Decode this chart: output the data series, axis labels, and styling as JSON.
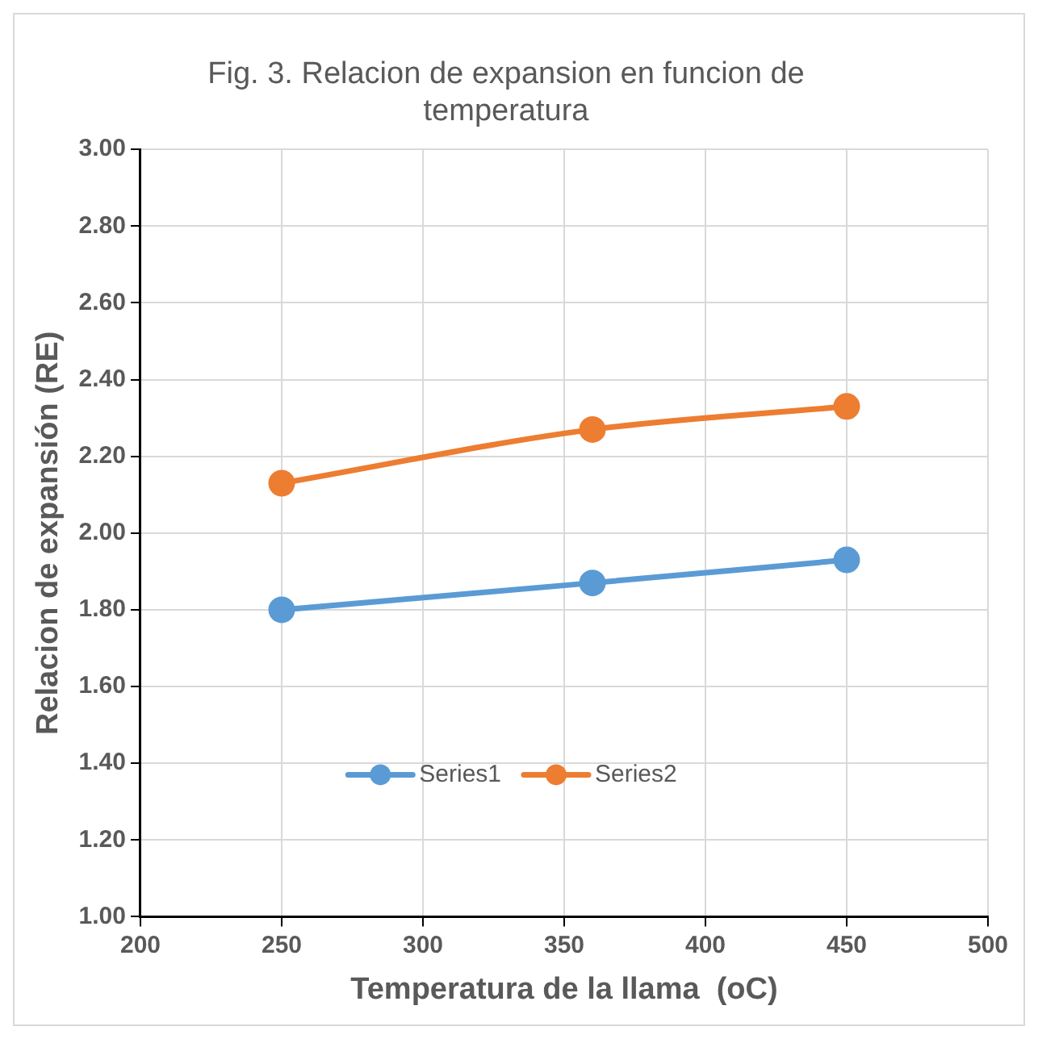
{
  "chart_data": {
    "type": "line",
    "title": "Fig. 3. Relacion de expansion en funcion de temperatura",
    "xlabel": "Temperatura de la llama  (oC)",
    "ylabel": "Relacion de expansión (RE)",
    "x": [
      250,
      360,
      450
    ],
    "series": [
      {
        "name": "Series1",
        "color": "#5b9bd5",
        "values": [
          1.8,
          1.87,
          1.93
        ]
      },
      {
        "name": "Series2",
        "color": "#ed7d31",
        "values": [
          2.13,
          2.27,
          2.33
        ]
      }
    ],
    "xlim": [
      200,
      500
    ],
    "xticks": [
      200,
      250,
      300,
      350,
      400,
      450,
      500
    ],
    "ylim": [
      1.0,
      3.0
    ],
    "yticks": [
      {
        "value": 1.0,
        "label": "1.00"
      },
      {
        "value": 1.2,
        "label": "1.20"
      },
      {
        "value": 1.4,
        "label": "1.40"
      },
      {
        "value": 1.6,
        "label": "1.60"
      },
      {
        "value": 1.8,
        "label": "1.80"
      },
      {
        "value": 2.0,
        "label": "2.00"
      },
      {
        "value": 2.2,
        "label": "2.20"
      },
      {
        "value": 2.4,
        "label": "2.40"
      },
      {
        "value": 2.6,
        "label": "2.60"
      },
      {
        "value": 2.8,
        "label": "2.80"
      },
      {
        "value": 3.0,
        "label": "3.00"
      }
    ],
    "grid": true,
    "legend": "bottom",
    "marker": "circle",
    "line_style": "solid"
  }
}
